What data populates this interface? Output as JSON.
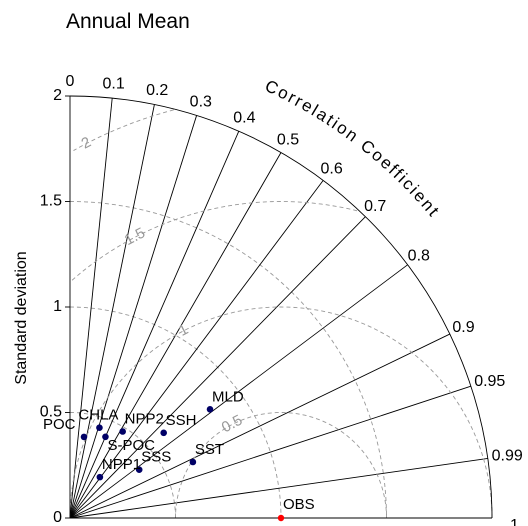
{
  "chart_data": {
    "type": "taylor",
    "title": "Annual Mean",
    "ylabel": "Standard deviation",
    "correlation_label": "Correlation Coefficient",
    "std_ticks": [
      "0",
      "0.5",
      "1",
      "1.5",
      "2"
    ],
    "std_range": [
      0,
      2
    ],
    "corr_ticks": [
      {
        "value": 0,
        "label": "0"
      },
      {
        "value": 0.1,
        "label": "0.1"
      },
      {
        "value": 0.2,
        "label": "0.2"
      },
      {
        "value": 0.3,
        "label": "0.3"
      },
      {
        "value": 0.4,
        "label": "0.4"
      },
      {
        "value": 0.5,
        "label": "0.5"
      },
      {
        "value": 0.6,
        "label": "0.6"
      },
      {
        "value": 0.7,
        "label": "0.7"
      },
      {
        "value": 0.8,
        "label": "0.8"
      },
      {
        "value": 0.9,
        "label": "0.9"
      },
      {
        "value": 0.95,
        "label": "0.95"
      },
      {
        "value": 0.99,
        "label": "0.99"
      },
      {
        "value": 1,
        "label": "1"
      }
    ],
    "rms_contours": [
      {
        "value": 0.5,
        "label": "0.5"
      },
      {
        "value": 1,
        "label": "1"
      },
      {
        "value": 1.5,
        "label": "1.5"
      },
      {
        "value": 2,
        "label": "2"
      }
    ],
    "reference": {
      "name": "OBS",
      "std": 1,
      "corr": 1,
      "color": "#ff0000"
    },
    "points": [
      {
        "name": "MLD",
        "std": 0.84,
        "corr": 0.79,
        "color": "#000066"
      },
      {
        "name": "SSH",
        "std": 0.6,
        "corr": 0.74,
        "color": "#000066"
      },
      {
        "name": "SST",
        "std": 0.64,
        "corr": 0.91,
        "color": "#000066"
      },
      {
        "name": "SSS",
        "std": 0.4,
        "corr": 0.82,
        "color": "#000066"
      },
      {
        "name": "NPP2",
        "std": 0.48,
        "corr": 0.52,
        "color": "#000066"
      },
      {
        "name": "S-POC",
        "std": 0.42,
        "corr": 0.4,
        "color": "#000066"
      },
      {
        "name": "CHLA",
        "std": 0.45,
        "corr": 0.31,
        "color": "#000066"
      },
      {
        "name": "POC",
        "std": 0.39,
        "corr": 0.17,
        "color": "#000066"
      },
      {
        "name": "NPP1",
        "std": 0.24,
        "corr": 0.59,
        "color": "#000066"
      }
    ]
  }
}
